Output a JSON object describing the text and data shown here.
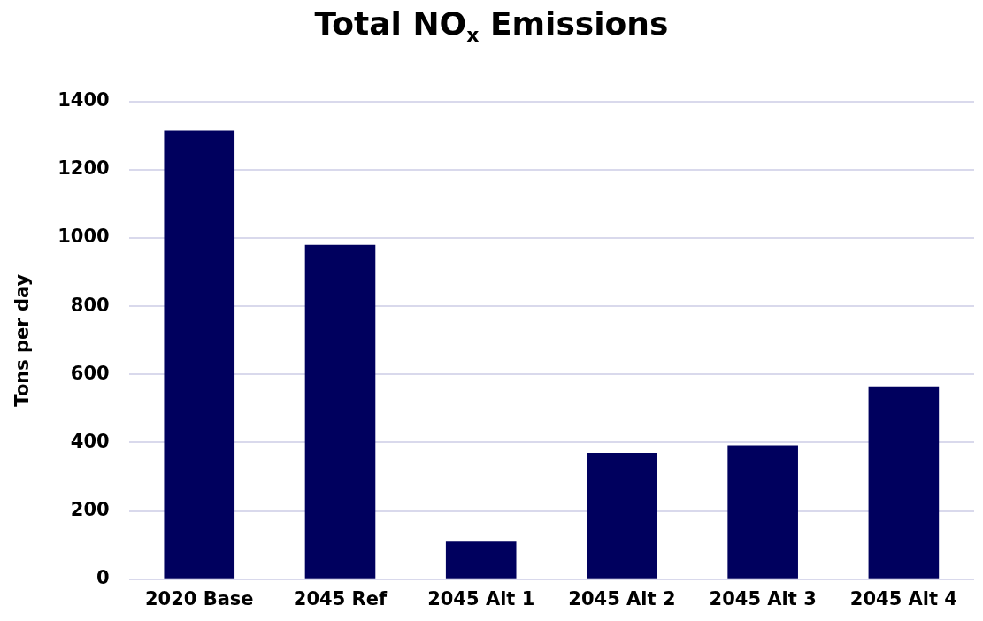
{
  "chart_data": {
    "type": "bar",
    "title": "Total NO$_{x}$ Emissions",
    "ylabel": "Tons per day",
    "categories": [
      "2020 Base",
      "2045 Ref",
      "2045 Alt 1",
      "2045 Alt 2",
      "2045 Alt 3",
      "2045 Alt 4"
    ],
    "values": [
      1315,
      980,
      110,
      370,
      392,
      565
    ],
    "color": "#00005e",
    "ylim": [
      0,
      1400
    ],
    "yticks": [
      0,
      200,
      400,
      600,
      800,
      1000,
      1200,
      1400
    ],
    "grid": "y",
    "legend": false
  }
}
